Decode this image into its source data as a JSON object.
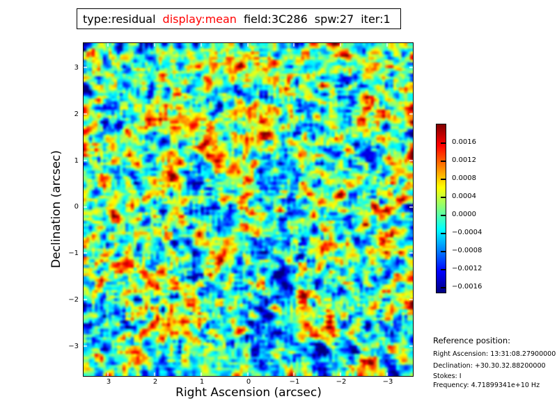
{
  "title": {
    "segments": [
      {
        "text": "type:residual",
        "color": "#000000"
      },
      {
        "text": "display:mean",
        "color": "#ff0000"
      },
      {
        "text": "field:3C286",
        "color": "#000000"
      },
      {
        "text": "spw:27",
        "color": "#000000"
      },
      {
        "text": "iter:1",
        "color": "#000000"
      }
    ]
  },
  "chart_data": {
    "type": "heatmap",
    "description": "Interferometric residual image of calibrator 3C286: spatially smooth random noise centered on zero, rendered with a jet colormap. Background sits near 0 (cyan-green) with blob-like positive excursions (yellow/orange/red) and negative excursions (blue/dark blue).",
    "xlabel": "Right Ascension (arcsec)",
    "ylabel": "Declination (arcsec)",
    "x_ticks": [
      "3",
      "2",
      "1",
      "0",
      "−1",
      "−2",
      "−3"
    ],
    "x_tick_values": [
      3,
      2,
      1,
      0,
      -1,
      -2,
      -3
    ],
    "x_range": [
      3.55,
      -3.55
    ],
    "y_ticks": [
      "3",
      "2",
      "1",
      "0",
      "−1",
      "−2",
      "−3"
    ],
    "y_tick_values": [
      3,
      2,
      1,
      0,
      -1,
      -2,
      -3
    ],
    "y_range": [
      -3.55,
      3.55
    ],
    "grid": false,
    "colormap": "jet",
    "colormap_stops": [
      "#7f0000 0%",
      "#ff0000 12.5%",
      "#ffff00 37.5%",
      "#00ffff 62.5%",
      "#0000ff 87.5%",
      "#00007f 100%"
    ],
    "colorbar_ticks": [
      "0.0016",
      "0.0012",
      "0.0008",
      "0.0004",
      "0.0000",
      "−0.0004",
      "−0.0008",
      "−0.0012",
      "−0.0016"
    ],
    "colorbar_tick_values": [
      0.0016,
      0.0012,
      0.0008,
      0.0004,
      0.0,
      -0.0004,
      -0.0008,
      -0.0012,
      -0.0016
    ],
    "value_range": [
      -0.00175,
      0.00205
    ],
    "noise_rms": 0.0004,
    "legend": "colorbar-right"
  },
  "reference": {
    "heading": "Reference position:",
    "lines": [
      "Right Ascension: 13:31:08.27900000",
      "Declination: +30.30.32.88200000",
      "Stokes: I",
      "Frequency: 4.71899341e+10 Hz"
    ]
  }
}
